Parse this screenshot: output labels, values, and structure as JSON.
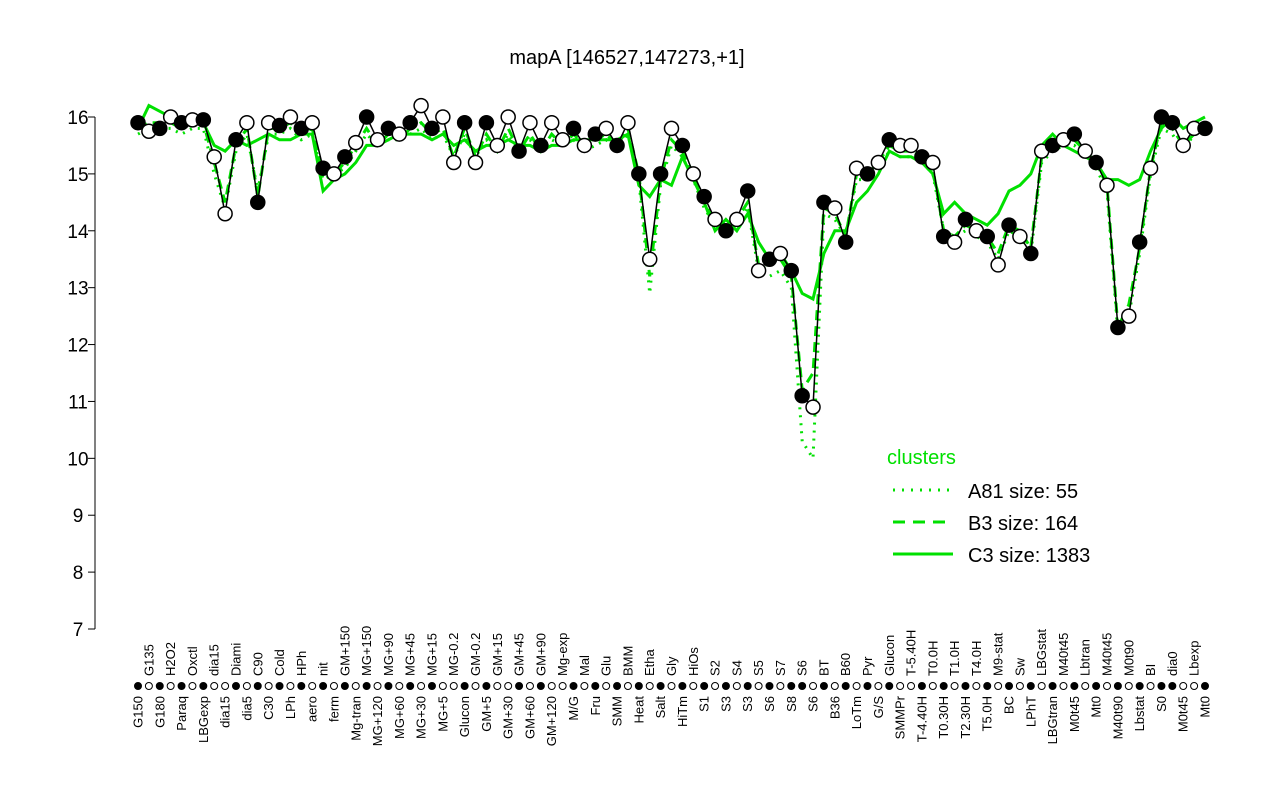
{
  "chart_data": {
    "type": "line",
    "title": "mapA [146527,147273,+1]",
    "xlabel": "",
    "ylabel": "",
    "ylim": [
      7,
      16
    ],
    "yticks": [
      7,
      8,
      9,
      10,
      11,
      12,
      13,
      14,
      15,
      16
    ],
    "grid": false,
    "legend": {
      "title": "clusters",
      "placement": "bottom-right",
      "entries": [
        {
          "label": "A81 size: 55",
          "style": "dotted"
        },
        {
          "label": "B3 size: 164",
          "style": "dashed"
        },
        {
          "label": "C3 size: 1383",
          "style": "solid"
        }
      ]
    },
    "colors": {
      "clusters": "#00e000",
      "points": "#000000"
    },
    "categories": [
      "G150",
      "G135",
      "G180",
      "H2O2",
      "Paraq",
      "Oxctl",
      "LBGexp",
      "dia15",
      "dia15",
      "Diami",
      "dia5",
      "C90",
      "C30",
      "Cold",
      "LPh",
      "HPh",
      "aero",
      "nit",
      "ferm",
      "GM+150",
      "Mg-tran",
      "MG+150",
      "MG+120",
      "MG+90",
      "MG+60",
      "MG+45",
      "MG+30",
      "MG+15",
      "MG+5",
      "MG-0.2",
      "Glucon",
      "GM-0.2",
      "GM+5",
      "GM+15",
      "GM+30",
      "GM+45",
      "GM+60",
      "GM+90",
      "GM+120",
      "Mg-exp",
      "M/G",
      "Mal",
      "Fru",
      "Glu",
      "SMM",
      "BMM",
      "Heat",
      "Etha",
      "Salt",
      "Gly",
      "HiTm",
      "HiOs",
      "S1",
      "S2",
      "S3",
      "S4",
      "S3",
      "S5",
      "S6",
      "S7",
      "S8",
      "S6",
      "S6",
      "BT",
      "B36",
      "B60",
      "LoTm",
      "Pyr",
      "G/S",
      "Glucon",
      "SMMPr",
      "T-5.40H",
      "T-4.40H",
      "T0.0H",
      "T0.30H",
      "T1.0H",
      "T2.30H",
      "T4.0H",
      "T5.0H",
      "M9-stat",
      "BC",
      "Sw",
      "LPhT",
      "LBGstat",
      "LBGtran",
      "M40t45",
      "M0t45",
      "Lbtran",
      "Mt0",
      "M40t45",
      "M40t90",
      "M0t90",
      "Lbstat",
      "BI",
      "S0",
      "dia0",
      "M0t45",
      "Lbexp",
      "Mt0"
    ],
    "points": {
      "values": [
        15.9,
        15.75,
        15.8,
        16.0,
        15.9,
        15.95,
        15.95,
        15.3,
        14.3,
        15.6,
        15.9,
        14.5,
        15.9,
        15.85,
        16.0,
        15.8,
        15.9,
        15.1,
        15.0,
        15.3,
        15.55,
        16.0,
        15.6,
        15.8,
        15.7,
        15.9,
        16.2,
        15.8,
        16.0,
        15.2,
        15.9,
        15.2,
        15.9,
        15.5,
        16.0,
        15.4,
        15.9,
        15.5,
        15.9,
        15.6,
        15.8,
        15.5,
        15.7,
        15.8,
        15.5,
        15.9,
        15.0,
        13.5,
        15.0,
        15.8,
        15.5,
        15.0,
        14.6,
        14.2,
        14.0,
        14.2,
        14.7,
        13.3,
        13.5,
        13.6,
        13.3,
        11.1,
        10.9,
        14.5,
        14.4,
        13.8,
        15.1,
        15.0,
        15.2,
        15.6,
        15.5,
        15.5,
        15.3,
        15.2,
        13.9,
        13.8,
        14.2,
        14.0,
        13.9,
        13.4,
        14.1,
        13.9,
        13.6,
        15.4,
        15.5,
        15.6,
        15.7,
        15.4,
        15.2,
        14.8,
        12.3,
        12.5,
        13.8,
        15.1,
        16.0,
        15.9,
        15.5,
        15.8,
        15.8
      ],
      "filled": [
        1,
        0,
        1,
        0,
        1,
        0,
        1,
        0,
        0,
        1,
        0,
        1,
        0,
        1,
        0,
        1,
        0,
        1,
        0,
        1,
        0,
        1,
        0,
        1,
        0,
        1,
        0,
        1,
        0,
        0,
        1,
        0,
        1,
        0,
        0,
        1,
        0,
        1,
        0,
        0,
        1,
        0,
        1,
        0,
        1,
        0,
        1,
        0,
        1,
        0,
        1,
        0,
        1,
        0,
        1,
        0,
        1,
        0,
        1,
        0,
        1,
        1,
        0,
        1,
        0,
        1,
        0,
        1,
        0,
        1,
        0,
        0,
        1,
        0,
        1,
        0,
        1,
        0,
        1,
        0,
        1,
        0,
        1,
        0,
        1,
        0,
        1,
        0,
        1,
        0,
        1,
        0,
        1,
        0,
        1,
        1,
        0,
        0,
        1
      ]
    },
    "series": [
      {
        "name": "C3",
        "style": "solid",
        "values": [
          15.8,
          16.2,
          16.1,
          16.0,
          15.9,
          15.9,
          15.9,
          15.5,
          15.4,
          15.6,
          15.5,
          15.6,
          15.7,
          15.6,
          15.6,
          15.7,
          15.7,
          14.7,
          14.9,
          15.0,
          15.2,
          15.5,
          15.5,
          15.6,
          15.7,
          15.7,
          15.7,
          15.6,
          15.7,
          15.5,
          15.6,
          15.4,
          15.5,
          15.5,
          15.6,
          15.5,
          15.5,
          15.4,
          15.5,
          15.5,
          15.6,
          15.6,
          15.6,
          15.6,
          15.6,
          15.7,
          14.8,
          14.6,
          14.9,
          14.8,
          15.3,
          14.9,
          14.5,
          14.0,
          14.2,
          14.0,
          14.3,
          13.8,
          13.5,
          13.6,
          13.3,
          12.9,
          12.8,
          13.6,
          14.0,
          14.0,
          14.5,
          14.7,
          15.0,
          15.4,
          15.3,
          15.3,
          15.2,
          15.0,
          14.3,
          14.5,
          14.3,
          14.2,
          14.1,
          14.3,
          14.7,
          14.8,
          15.0,
          15.5,
          15.7,
          15.5,
          15.4,
          15.3,
          15.2,
          14.9,
          14.9,
          14.8,
          14.9,
          15.4,
          15.8,
          16.0,
          15.8,
          15.9,
          16.0
        ]
      },
      {
        "name": "B3",
        "style": "dashed",
        "values": [
          15.8,
          15.9,
          15.9,
          15.9,
          15.8,
          15.9,
          15.9,
          15.2,
          14.5,
          15.5,
          15.8,
          14.6,
          15.8,
          15.8,
          15.9,
          15.7,
          15.8,
          15.0,
          15.0,
          15.2,
          15.5,
          15.8,
          15.5,
          15.7,
          15.6,
          15.8,
          15.9,
          15.7,
          15.8,
          15.3,
          15.8,
          15.3,
          15.7,
          15.4,
          15.8,
          15.4,
          15.7,
          15.4,
          15.7,
          15.5,
          15.7,
          15.5,
          15.6,
          15.7,
          15.5,
          15.8,
          15.0,
          13.2,
          14.9,
          15.6,
          15.4,
          15.0,
          14.5,
          14.2,
          14.1,
          14.2,
          14.5,
          13.4,
          13.4,
          13.5,
          13.2,
          11.2,
          11.5,
          14.4,
          14.3,
          13.9,
          15.0,
          15.0,
          15.2,
          15.5,
          15.4,
          15.4,
          15.3,
          15.1,
          14.0,
          13.9,
          14.1,
          14.0,
          13.9,
          13.6,
          14.1,
          14.0,
          13.7,
          15.3,
          15.5,
          15.6,
          15.6,
          15.4,
          15.2,
          14.8,
          12.3,
          12.7,
          13.7,
          15.1,
          15.9,
          15.8,
          15.5,
          15.7,
          15.8
        ]
      },
      {
        "name": "A81",
        "style": "dotted",
        "values": [
          15.7,
          15.8,
          15.8,
          15.8,
          15.7,
          15.8,
          15.8,
          15.0,
          14.4,
          15.4,
          15.7,
          14.7,
          15.7,
          15.7,
          15.8,
          15.6,
          15.7,
          14.9,
          15.0,
          15.1,
          15.4,
          15.7,
          15.5,
          15.6,
          15.6,
          15.7,
          15.8,
          15.6,
          15.7,
          15.3,
          15.7,
          15.3,
          15.6,
          15.4,
          15.7,
          15.4,
          15.6,
          15.4,
          15.6,
          15.5,
          15.6,
          15.4,
          15.5,
          15.6,
          15.4,
          15.7,
          14.9,
          12.9,
          14.8,
          15.5,
          15.3,
          14.9,
          14.4,
          14.1,
          14.0,
          14.1,
          14.4,
          13.3,
          13.2,
          13.3,
          13.0,
          10.3,
          10.0,
          14.3,
          14.2,
          13.9,
          14.9,
          14.9,
          15.1,
          15.4,
          15.3,
          15.3,
          15.2,
          15.0,
          14.0,
          13.9,
          14.0,
          13.9,
          13.8,
          13.5,
          14.0,
          13.9,
          13.6,
          15.2,
          15.4,
          15.5,
          15.5,
          15.3,
          15.1,
          14.7,
          12.2,
          12.5,
          13.6,
          15.0,
          15.8,
          15.7,
          15.4,
          15.7,
          15.7
        ]
      }
    ]
  }
}
